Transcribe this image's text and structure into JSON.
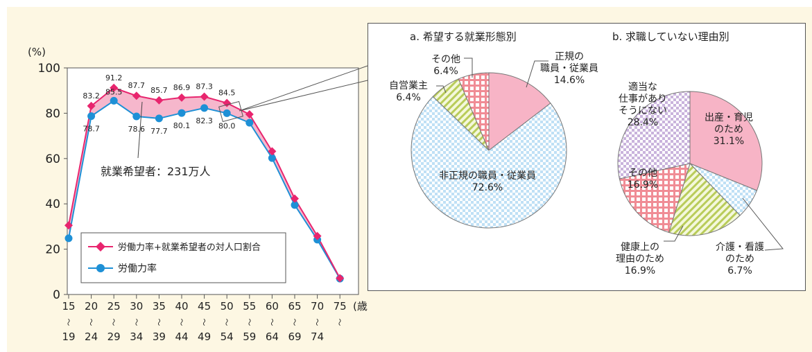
{
  "chart_data": [
    {
      "type": "line",
      "ylabel": "(%)",
      "xlabel": "(歳)",
      "ylim": [
        0,
        100
      ],
      "y_ticks": [
        "0",
        "20",
        "40",
        "60",
        "80",
        "100"
      ],
      "categories": [
        {
          "top": "15",
          "bottom": "19"
        },
        {
          "top": "20",
          "bottom": "24"
        },
        {
          "top": "25",
          "bottom": "29"
        },
        {
          "top": "30",
          "bottom": "34"
        },
        {
          "top": "35",
          "bottom": "39"
        },
        {
          "top": "40",
          "bottom": "44"
        },
        {
          "top": "45",
          "bottom": "49"
        },
        {
          "top": "50",
          "bottom": "54"
        },
        {
          "top": "55",
          "bottom": "59"
        },
        {
          "top": "60",
          "bottom": "64"
        },
        {
          "top": "65",
          "bottom": "69"
        },
        {
          "top": "70",
          "bottom": "74"
        },
        {
          "top": "75",
          "bottom": ""
        }
      ],
      "tilde": "〜",
      "series": [
        {
          "name": "労働力率+就業希望者の対人口割合",
          "color": "#e8256e",
          "marker": "diamond",
          "values": [
            30.5,
            83.2,
            91.2,
            87.7,
            85.7,
            86.9,
            87.3,
            84.5,
            79.5,
            63.2,
            42.3,
            25.8,
            7.2
          ],
          "labels": [
            "",
            "83.2",
            "91.2",
            "87.7",
            "85.7",
            "86.9",
            "87.3",
            "84.5",
            "",
            "",
            "",
            "",
            ""
          ]
        },
        {
          "name": "労働力率",
          "color": "#1e90d6",
          "marker": "circle",
          "values": [
            24.8,
            78.7,
            85.5,
            78.6,
            77.7,
            80.1,
            82.3,
            80.0,
            75.8,
            60.2,
            39.5,
            24.2,
            7.0
          ],
          "labels": [
            "",
            "78.7",
            "85.5",
            "78.6",
            "77.7",
            "80.1",
            "82.3",
            "80.0",
            "",
            "",
            "",
            "",
            ""
          ]
        }
      ],
      "fill_between_color": "#f6b7cc",
      "annotation": "就業希望者：231万人"
    },
    {
      "type": "pie",
      "title": "a. 希望する就業形態別",
      "slices": [
        {
          "label": [
            "正規の",
            "職員・従業員"
          ],
          "value": 14.6,
          "text": "14.6%",
          "color": "#f7b4c6",
          "pattern": "none"
        },
        {
          "label": [
            "非正規の職員・従業員"
          ],
          "value": 72.6,
          "text": "72.6%",
          "color": "#bfe0f5",
          "pattern": "check-blue"
        },
        {
          "label": [
            "自営業主"
          ],
          "value": 6.4,
          "text": "6.4%",
          "color": "#e4edb6",
          "pattern": "stripe-green"
        },
        {
          "label": [
            "その他"
          ],
          "value": 6.4,
          "text": "6.4%",
          "color": "#f7c6c9",
          "pattern": "check-red"
        }
      ]
    },
    {
      "type": "pie",
      "title": "b. 求職していない理由別",
      "slices": [
        {
          "label": [
            "出産・育児",
            "のため"
          ],
          "value": 31.1,
          "text": "31.1%",
          "color": "#f7b4c6",
          "pattern": "none"
        },
        {
          "label": [
            "介護・看護",
            "のため"
          ],
          "value": 6.7,
          "text": "6.7%",
          "color": "#bfe0f5",
          "pattern": "check-blue"
        },
        {
          "label": [
            "健康上の",
            "理由のため"
          ],
          "value": 16.9,
          "text": "16.9%",
          "color": "#e4edb6",
          "pattern": "stripe-green"
        },
        {
          "label": [
            "その他"
          ],
          "value": 16.9,
          "text": "16.9%",
          "color": "#f7c6c9",
          "pattern": "check-red"
        },
        {
          "label": [
            "適当な",
            "仕事があり",
            "そうにない"
          ],
          "value": 28.4,
          "text": "28.4%",
          "color": "#c9b3dc",
          "pattern": "check-purple"
        }
      ]
    }
  ]
}
